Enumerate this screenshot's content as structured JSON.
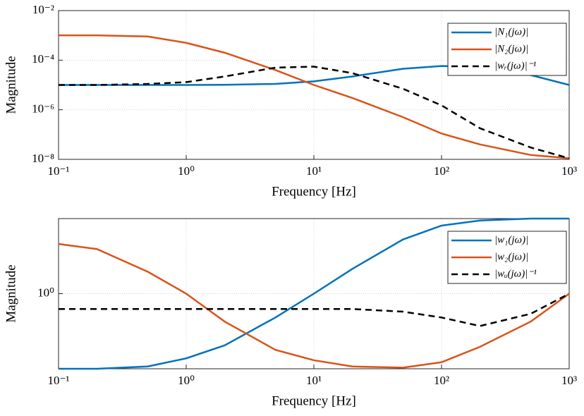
{
  "chart_data": [
    {
      "type": "line",
      "xlabel": "Frequency [Hz]",
      "ylabel": "Magnitude",
      "x": [
        0.1,
        0.2,
        0.5,
        1,
        2,
        5,
        10,
        20,
        50,
        100,
        200,
        500,
        1000
      ],
      "series": [
        {
          "name": "|N₁(jω)|",
          "color": "#0072BD",
          "line_style": "solid",
          "values": [
            1e-05,
            1e-05,
            1e-05,
            1e-05,
            1.02e-05,
            1.1e-05,
            1.4e-05,
            2.2e-05,
            4.5e-05,
            5.8e-05,
            5.3e-05,
            2.5e-05,
            1e-05
          ]
        },
        {
          "name": "|N₂(jω)|",
          "color": "#D95319",
          "line_style": "solid",
          "values": [
            0.001,
            0.001,
            0.0009,
            0.0005,
            0.0002,
            4e-05,
            1e-05,
            3e-06,
            5e-07,
            1.1e-07,
            4e-08,
            1.5e-08,
            1.1e-08
          ]
        },
        {
          "name": "|wᵣ(jω)|⁻¹",
          "color": "#000000",
          "line_style": "dashed",
          "values": [
            1e-05,
            1e-05,
            1.1e-05,
            1.3e-05,
            2.2e-05,
            5e-05,
            5.5e-05,
            3e-05,
            7e-06,
            1.5e-06,
            1.8e-07,
            3e-08,
            1.1e-08
          ]
        }
      ],
      "xlim": [
        0.1,
        1000
      ],
      "ylim": [
        1e-08,
        0.01
      ],
      "x_scale": "log",
      "y_scale": "log",
      "xticks": [
        {
          "value": 0.1,
          "label": "10⁻¹"
        },
        {
          "value": 1,
          "label": "10⁰"
        },
        {
          "value": 10,
          "label": "10¹"
        },
        {
          "value": 100,
          "label": "10²"
        },
        {
          "value": 1000,
          "label": "10³"
        }
      ],
      "yticks": [
        {
          "value": 1e-08,
          "label": "10⁻⁸"
        },
        {
          "value": 1e-06,
          "label": "10⁻⁶"
        },
        {
          "value": 0.0001,
          "label": "10⁻⁴"
        },
        {
          "value": 0.01,
          "label": "10⁻²"
        }
      ],
      "grid": true,
      "legend": "upper right"
    },
    {
      "type": "line",
      "xlabel": "Frequency [Hz]",
      "ylabel": "Magnitude",
      "x": [
        0.1,
        0.2,
        0.5,
        1,
        2,
        5,
        10,
        20,
        50,
        100,
        200,
        500,
        1000
      ],
      "series": [
        {
          "name": "|w₁(jω)|",
          "color": "#0072BD",
          "line_style": "solid",
          "values": [
            0.2,
            0.2,
            0.21,
            0.25,
            0.33,
            0.6,
            1.0,
            1.7,
            3.2,
            4.3,
            4.8,
            5,
            5
          ]
        },
        {
          "name": "|w₂(jω)|",
          "color": "#D95319",
          "line_style": "solid",
          "values": [
            2.9,
            2.6,
            1.6,
            1.0,
            0.55,
            0.3,
            0.24,
            0.21,
            0.205,
            0.23,
            0.32,
            0.55,
            1.0
          ]
        },
        {
          "name": "|wᵤ(jω)|⁻¹",
          "color": "#000000",
          "line_style": "dashed",
          "values": [
            0.72,
            0.72,
            0.72,
            0.72,
            0.72,
            0.72,
            0.72,
            0.72,
            0.68,
            0.6,
            0.5,
            0.65,
            1.0
          ]
        }
      ],
      "xlim": [
        0.1,
        1000
      ],
      "ylim": [
        0.2,
        5
      ],
      "x_scale": "log",
      "y_scale": "log",
      "xticks": [
        {
          "value": 0.1,
          "label": "10⁻¹"
        },
        {
          "value": 1,
          "label": "10⁰"
        },
        {
          "value": 10,
          "label": "10¹"
        },
        {
          "value": 100,
          "label": "10²"
        },
        {
          "value": 1000,
          "label": "10³"
        }
      ],
      "yticks": [
        {
          "value": 1,
          "label": "10⁰"
        }
      ],
      "grid": true,
      "legend": "upper right"
    }
  ]
}
